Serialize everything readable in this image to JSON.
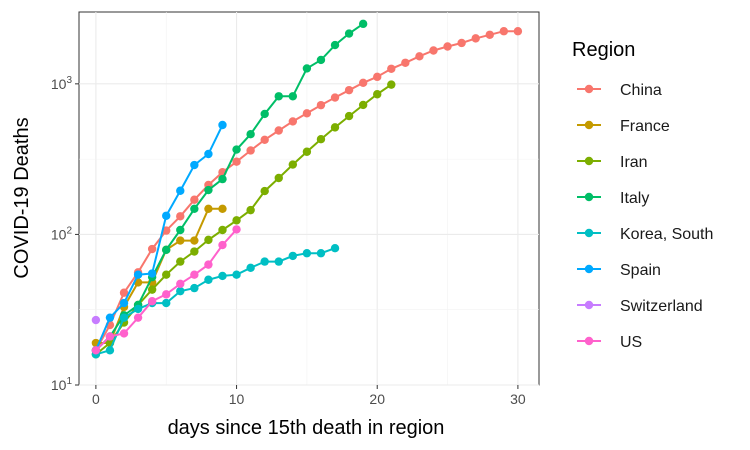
{
  "chart_data": {
    "type": "line",
    "title": "",
    "xlabel": "days since 15th death in region",
    "ylabel": "COVID-19 Deaths",
    "x_ticks": [
      0,
      10,
      20,
      30
    ],
    "xlim": [
      -1.2,
      31.5
    ],
    "y_scale": "log10",
    "y_ticks": [
      10,
      100,
      1000
    ],
    "y_tick_labels": [
      {
        "base": "10",
        "exp": "1"
      },
      {
        "base": "10",
        "exp": "2"
      },
      {
        "base": "10",
        "exp": "3"
      }
    ],
    "ylim": [
      10,
      3000
    ],
    "grid": true,
    "legend_title": "Region",
    "legend_position": "right",
    "series": [
      {
        "name": "China",
        "color": "#F8766D",
        "x": [
          0,
          1,
          2,
          3,
          4,
          5,
          6,
          7,
          8,
          9,
          10,
          11,
          12,
          13,
          14,
          15,
          16,
          17,
          18,
          19,
          20,
          21,
          22,
          23,
          24,
          25,
          26,
          27,
          28,
          29,
          30
        ],
        "y": [
          17,
          25,
          41,
          56,
          80,
          106,
          132,
          170,
          213,
          259,
          304,
          361,
          425,
          490,
          563,
          637,
          722,
          811,
          908,
          1016,
          1113,
          1259,
          1380,
          1523,
          1665,
          1770,
          1868,
          2004,
          2118,
          2236,
          2236
        ]
      },
      {
        "name": "France",
        "color": "#C49A00",
        "x": [
          0,
          1,
          2,
          3,
          4,
          5,
          6,
          7,
          8,
          9
        ],
        "y": [
          19,
          19,
          33,
          48,
          48,
          79,
          91,
          91,
          148,
          148
        ]
      },
      {
        "name": "Iran",
        "color": "#7CAE00",
        "x": [
          0,
          1,
          2,
          3,
          4,
          5,
          6,
          7,
          8,
          9,
          10,
          11,
          12,
          13,
          14,
          15,
          16,
          17,
          18,
          19,
          20,
          21
        ],
        "y": [
          16,
          19,
          26,
          34,
          43,
          54,
          66,
          77,
          92,
          107,
          124,
          145,
          194,
          237,
          291,
          354,
          429,
          514,
          611,
          724,
          853,
          988
        ]
      },
      {
        "name": "Italy",
        "color": "#00BE67",
        "x": [
          0,
          1,
          2,
          3,
          4,
          5,
          6,
          7,
          8,
          9,
          10,
          11,
          12,
          13,
          14,
          15,
          16,
          17,
          18,
          19
        ],
        "y": [
          17,
          21,
          29,
          34,
          52,
          79,
          107,
          148,
          197,
          233,
          366,
          463,
          631,
          827,
          827,
          1266,
          1441,
          1809,
          2158,
          2503
        ]
      },
      {
        "name": "Korea, South",
        "color": "#00BFC4",
        "x": [
          0,
          1,
          2,
          3,
          4,
          5,
          6,
          7,
          8,
          9,
          10,
          11,
          12,
          13,
          14,
          15,
          16,
          17
        ],
        "y": [
          16,
          17,
          28,
          32,
          35,
          35,
          42,
          44,
          50,
          53,
          54,
          60,
          66,
          66,
          72,
          75,
          75,
          81
        ]
      },
      {
        "name": "Spain",
        "color": "#00A9FF",
        "x": [
          0,
          1,
          2,
          3,
          4,
          5,
          6,
          7,
          8,
          9
        ],
        "y": [
          17,
          28,
          35,
          54,
          55,
          133,
          195,
          289,
          342,
          533
        ]
      },
      {
        "name": "Switzerland",
        "color": "#C77CFF",
        "x": [
          0
        ],
        "y": [
          27
        ]
      },
      {
        "name": "US",
        "color": "#FF61CC",
        "x": [
          0,
          1,
          2,
          3,
          4,
          5,
          6,
          7,
          8,
          9,
          10
        ],
        "y": [
          17,
          21,
          22,
          28,
          36,
          40,
          47,
          54,
          63,
          85,
          108
        ]
      }
    ]
  }
}
